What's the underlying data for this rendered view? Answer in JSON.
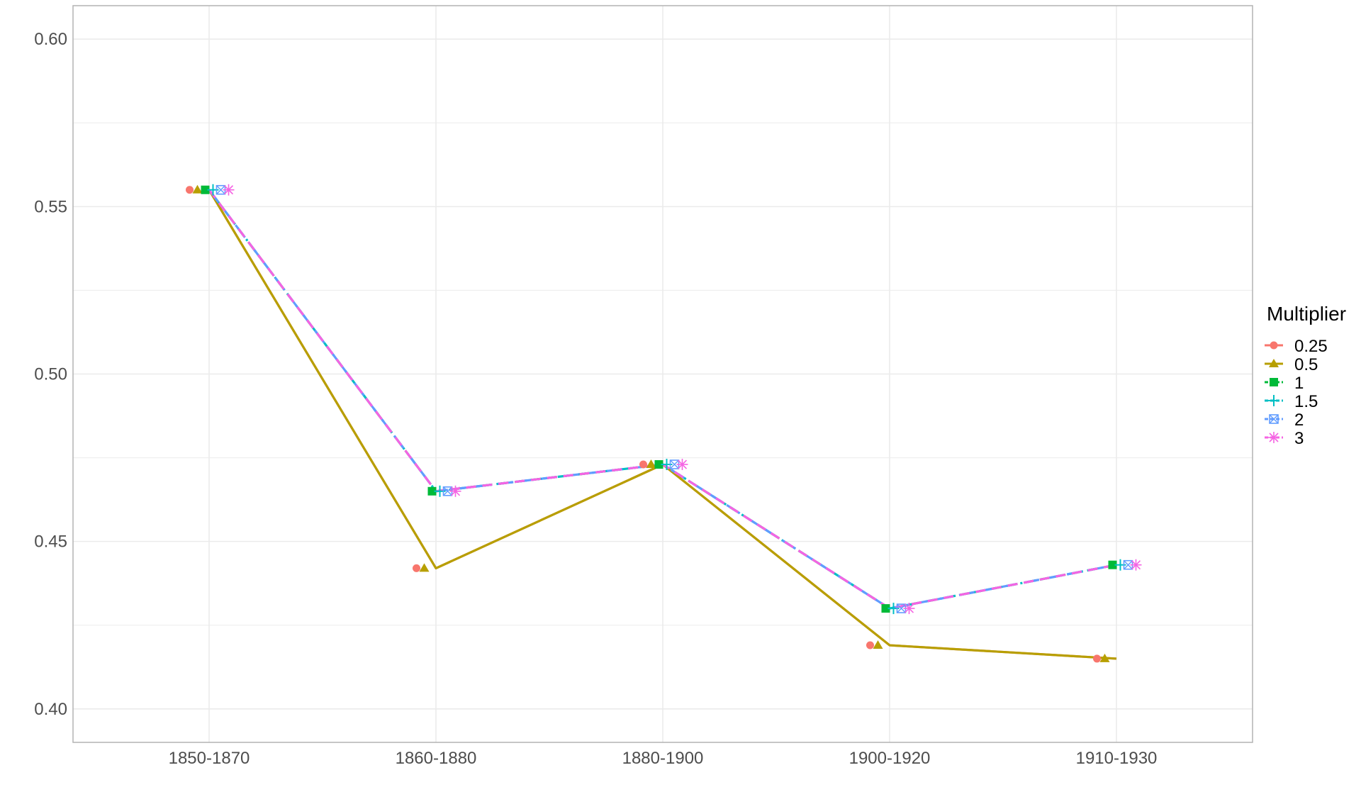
{
  "chart_data": {
    "type": "line",
    "title": "",
    "xlabel": "",
    "ylabel": "",
    "categories": [
      "1850-1870",
      "1860-1880",
      "1880-1900",
      "1900-1920",
      "1910-1930"
    ],
    "y_ticks": [
      "0.40",
      "0.45",
      "0.50",
      "0.55",
      "0.60"
    ],
    "ylim": [
      0.39,
      0.61
    ],
    "grid": true,
    "legend": {
      "title": "Multiplier",
      "placement": "right"
    },
    "series": [
      {
        "name": "0.25",
        "color": "#F8766D",
        "marker": "circle",
        "line": "solid",
        "values": [
          0.555,
          0.442,
          0.473,
          0.419,
          0.415
        ]
      },
      {
        "name": "0.5",
        "color": "#B79F00",
        "marker": "triangle",
        "line": "solid",
        "values": [
          0.555,
          0.442,
          0.473,
          0.419,
          0.415
        ]
      },
      {
        "name": "1",
        "color": "#00BA38",
        "marker": "square",
        "line": "dashed",
        "values": [
          0.555,
          0.465,
          0.473,
          0.43,
          0.443
        ]
      },
      {
        "name": "1.5",
        "color": "#00BFC4",
        "marker": "plus",
        "line": "dotdash",
        "values": [
          0.555,
          0.465,
          0.473,
          0.43,
          0.443
        ]
      },
      {
        "name": "2",
        "color": "#619CFF",
        "marker": "square-x",
        "line": "longdash",
        "values": [
          0.555,
          0.465,
          0.473,
          0.43,
          0.443
        ]
      },
      {
        "name": "3",
        "color": "#F564E3",
        "marker": "asterisk",
        "line": "dashed",
        "values": [
          0.555,
          0.465,
          0.473,
          0.43,
          0.443
        ]
      }
    ]
  }
}
